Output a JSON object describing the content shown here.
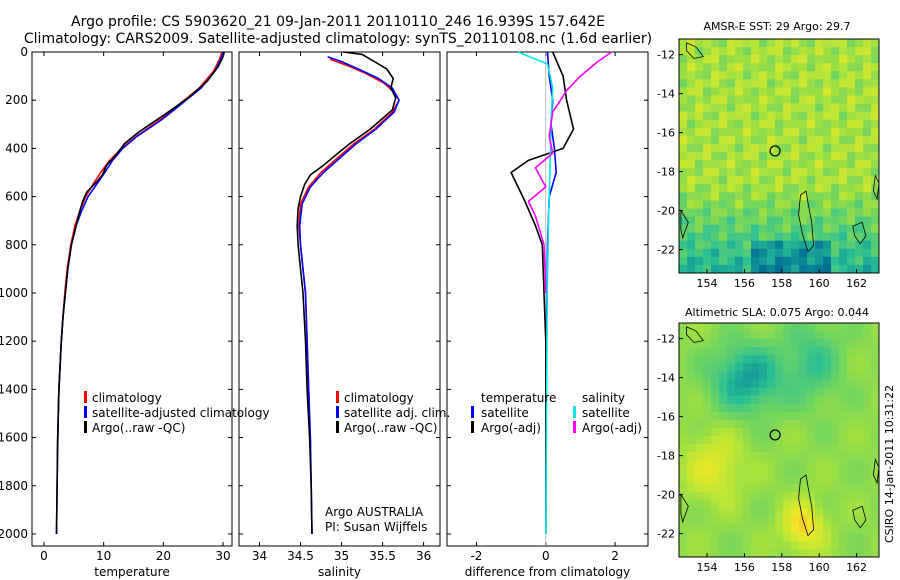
{
  "title": {
    "line1": "Argo profile: CS 5903620_21 09-Jan-2011 20110110_246 16.939S 157.642E",
    "line2": "Climatology: CARS2009. Satellite-adjusted climatology: synTS_20110108.nc (1.6d earlier)"
  },
  "colors": {
    "climatology": "#ff0000",
    "satellite": "#0000ff",
    "argo": "#000000",
    "diff_temp_sat": "#00e5e5",
    "diff_sal_sat": "#0000ff",
    "diff_sal_argo": "#ff00ff"
  },
  "depth_axis": {
    "range": [
      0,
      2050
    ],
    "ticks": [
      0,
      200,
      400,
      600,
      800,
      1000,
      1200,
      1400,
      1600,
      1800,
      2000
    ],
    "tick_labels": [
      "0",
      "200",
      "400",
      "600",
      "800",
      "1000",
      "1200",
      "1400",
      "1600",
      "1800",
      "2000"
    ]
  },
  "chart_data": [
    {
      "id": "temperature",
      "type": "line",
      "xlabel": "temperature",
      "ylabel": "",
      "xlim": [
        -2,
        31.5
      ],
      "ylim": [
        2050,
        0
      ],
      "xticks": [
        0,
        10,
        20,
        30
      ],
      "xtick_labels": [
        "0",
        "10",
        "20",
        "30"
      ],
      "legend": [
        "climatology",
        "satellite-adjusted climatology",
        "Argo(..raw -QC)"
      ],
      "legend_position": "lower-right",
      "series": [
        {
          "name": "climatology",
          "color_key": "climatology",
          "points": [
            [
              29.8,
              0
            ],
            [
              29.4,
              30
            ],
            [
              28.4,
              80
            ],
            [
              26.0,
              150
            ],
            [
              23.5,
              200
            ],
            [
              19.5,
              280
            ],
            [
              15.5,
              350
            ],
            [
              13.0,
              400
            ],
            [
              11.0,
              450
            ],
            [
              9.5,
              500
            ],
            [
              8.2,
              550
            ],
            [
              7.0,
              600
            ],
            [
              6.0,
              660
            ],
            [
              5.2,
              720
            ],
            [
              4.5,
              800
            ],
            [
              3.9,
              900
            ],
            [
              3.5,
              1000
            ],
            [
              3.2,
              1100
            ],
            [
              2.9,
              1200
            ],
            [
              2.7,
              1300
            ],
            [
              2.5,
              1400
            ],
            [
              2.4,
              1500
            ],
            [
              2.3,
              1640
            ]
          ]
        },
        {
          "name": "satellite-adjusted climatology",
          "color_key": "satellite",
          "points": [
            [
              30.0,
              0
            ],
            [
              29.6,
              30
            ],
            [
              28.6,
              80
            ],
            [
              26.3,
              150
            ],
            [
              23.8,
              200
            ],
            [
              19.8,
              280
            ],
            [
              15.6,
              350
            ],
            [
              13.2,
              400
            ],
            [
              11.5,
              450
            ],
            [
              10.2,
              500
            ],
            [
              8.8,
              550
            ],
            [
              7.4,
              600
            ],
            [
              6.3,
              660
            ],
            [
              5.4,
              720
            ],
            [
              4.6,
              800
            ],
            [
              4.0,
              900
            ],
            [
              3.6,
              1000
            ],
            [
              3.2,
              1100
            ],
            [
              2.9,
              1200
            ],
            [
              2.7,
              1300
            ],
            [
              2.5,
              1400
            ],
            [
              2.4,
              1500
            ],
            [
              2.3,
              1600
            ],
            [
              2.25,
              1700
            ],
            [
              2.2,
              1800
            ],
            [
              2.15,
              1900
            ],
            [
              2.1,
              2000
            ]
          ]
        },
        {
          "name": "Argo(..raw -QC)",
          "color_key": "argo",
          "points": [
            [
              30.2,
              0
            ],
            [
              30.0,
              20
            ],
            [
              29.2,
              60
            ],
            [
              27.4,
              120
            ],
            [
              24.2,
              190
            ],
            [
              20.2,
              260
            ],
            [
              16.0,
              330
            ],
            [
              13.5,
              380
            ],
            [
              12.0,
              430
            ],
            [
              10.5,
              470
            ],
            [
              9.8,
              510
            ],
            [
              8.8,
              540
            ],
            [
              7.2,
              580
            ],
            [
              6.5,
              620
            ],
            [
              6.0,
              660
            ],
            [
              5.4,
              720
            ],
            [
              4.6,
              800
            ],
            [
              4.0,
              900
            ],
            [
              3.6,
              1000
            ],
            [
              3.2,
              1100
            ],
            [
              2.9,
              1200
            ],
            [
              2.7,
              1300
            ],
            [
              2.5,
              1400
            ],
            [
              2.4,
              1500
            ],
            [
              2.3,
              1600
            ],
            [
              2.25,
              1700
            ],
            [
              2.2,
              1800
            ],
            [
              2.15,
              1900
            ],
            [
              2.1,
              2000
            ]
          ]
        }
      ]
    },
    {
      "id": "salinity",
      "type": "line",
      "xlabel": "salinity",
      "ylabel": "",
      "xlim": [
        33.75,
        36.2
      ],
      "ylim": [
        2050,
        0
      ],
      "xticks": [
        34,
        34.5,
        35,
        35.5,
        36
      ],
      "xtick_labels": [
        "34",
        "34.5",
        "35",
        "35.5",
        "36"
      ],
      "legend": [
        "climatology",
        "satellite adj. clim.",
        "Argo(..raw -QC)"
      ],
      "legend_position": "lower-right",
      "annotation": [
        "Argo AUSTRALIA",
        "PI: Susan Wijffels"
      ],
      "series": [
        {
          "name": "climatology",
          "color_key": "climatology",
          "points": [
            [
              34.86,
              30
            ],
            [
              35.1,
              60
            ],
            [
              35.3,
              90
            ],
            [
              35.52,
              130
            ],
            [
              35.65,
              170
            ],
            [
              35.7,
              200
            ],
            [
              35.62,
              250
            ],
            [
              35.4,
              320
            ],
            [
              35.15,
              380
            ],
            [
              34.95,
              440
            ],
            [
              34.75,
              500
            ],
            [
              34.6,
              560
            ],
            [
              34.5,
              630
            ],
            [
              34.48,
              720
            ],
            [
              34.5,
              800
            ],
            [
              34.53,
              900
            ],
            [
              34.56,
              1000
            ],
            [
              34.58,
              1200
            ],
            [
              34.6,
              1400
            ],
            [
              34.62,
              1640
            ]
          ]
        },
        {
          "name": "satellite adj. clim.",
          "color_key": "satellite",
          "points": [
            [
              34.83,
              20
            ],
            [
              35.0,
              40
            ],
            [
              35.2,
              70
            ],
            [
              35.45,
              110
            ],
            [
              35.62,
              150
            ],
            [
              35.7,
              200
            ],
            [
              35.64,
              250
            ],
            [
              35.42,
              320
            ],
            [
              35.18,
              380
            ],
            [
              34.98,
              440
            ],
            [
              34.78,
              500
            ],
            [
              34.62,
              560
            ],
            [
              34.52,
              630
            ],
            [
              34.49,
              720
            ],
            [
              34.5,
              800
            ],
            [
              34.53,
              900
            ],
            [
              34.56,
              1000
            ],
            [
              34.58,
              1200
            ],
            [
              34.6,
              1400
            ],
            [
              34.62,
              1600
            ],
            [
              34.63,
              1800
            ],
            [
              34.64,
              2000
            ]
          ]
        },
        {
          "name": "Argo(..raw -QC)",
          "color_key": "argo",
          "points": [
            [
              35.02,
              0
            ],
            [
              35.25,
              10
            ],
            [
              35.35,
              30
            ],
            [
              35.55,
              70
            ],
            [
              35.63,
              110
            ],
            [
              35.6,
              150
            ],
            [
              35.66,
              190
            ],
            [
              35.62,
              240
            ],
            [
              35.35,
              320
            ],
            [
              35.1,
              380
            ],
            [
              34.92,
              430
            ],
            [
              34.78,
              470
            ],
            [
              34.62,
              510
            ],
            [
              34.55,
              550
            ],
            [
              34.5,
              600
            ],
            [
              34.47,
              650
            ],
            [
              34.46,
              720
            ],
            [
              34.47,
              800
            ],
            [
              34.5,
              900
            ],
            [
              34.53,
              1000
            ],
            [
              34.56,
              1200
            ],
            [
              34.58,
              1400
            ],
            [
              34.61,
              1600
            ],
            [
              34.63,
              1800
            ],
            [
              34.64,
              2000
            ]
          ]
        }
      ]
    },
    {
      "id": "difference",
      "type": "line",
      "xlabel": "difference from climatology",
      "ylabel": "",
      "xlim": [
        -2.85,
        2.95
      ],
      "ylim": [
        2050,
        0
      ],
      "xticks": [
        -2,
        0,
        2
      ],
      "xtick_labels": [
        "-2",
        "0",
        "2"
      ],
      "legend_temperature": {
        "heading": "temperature",
        "items": [
          "satellite",
          "Argo(-adj)"
        ]
      },
      "legend_salinity": {
        "heading": "salinity",
        "items": [
          "satellite",
          "Argo(-adj)"
        ]
      },
      "series": [
        {
          "name": "temperature satellite",
          "color_key": "satellite",
          "points": [
            [
              0.05,
              0
            ],
            [
              0.1,
              100
            ],
            [
              0.2,
              200
            ],
            [
              0.15,
              300
            ],
            [
              0.25,
              400
            ],
            [
              0.3,
              500
            ],
            [
              0.1,
              600
            ],
            [
              0.05,
              800
            ],
            [
              0.02,
              1200
            ],
            [
              0.0,
              2000
            ]
          ]
        },
        {
          "name": "temperature Argo(-adj)",
          "color_key": "argo",
          "points": [
            [
              0.2,
              0
            ],
            [
              0.5,
              100
            ],
            [
              0.6,
              200
            ],
            [
              0.8,
              320
            ],
            [
              0.5,
              400
            ],
            [
              -0.5,
              450
            ],
            [
              -1.0,
              500
            ],
            [
              -0.8,
              560
            ],
            [
              -0.6,
              620
            ],
            [
              -0.3,
              720
            ],
            [
              -0.1,
              800
            ],
            [
              -0.05,
              1000
            ],
            [
              0.0,
              1200
            ],
            [
              0.0,
              2000
            ]
          ]
        },
        {
          "name": "salinity satellite",
          "color_key": "diff_temp_sat",
          "points": [
            [
              -0.8,
              0
            ],
            [
              0.05,
              50
            ],
            [
              0.2,
              150
            ],
            [
              0.15,
              300
            ],
            [
              0.12,
              500
            ],
            [
              0.08,
              700
            ],
            [
              0.04,
              1000
            ],
            [
              0.02,
              1500
            ],
            [
              0.0,
              2000
            ]
          ]
        },
        {
          "name": "salinity Argo(-adj)",
          "color_key": "diff_sal_argo",
          "points": [
            [
              1.9,
              0
            ],
            [
              1.5,
              40
            ],
            [
              1.0,
              100
            ],
            [
              0.6,
              160
            ],
            [
              0.2,
              250
            ],
            [
              0.1,
              350
            ],
            [
              0.2,
              420
            ],
            [
              -0.3,
              480
            ],
            [
              0.0,
              560
            ],
            [
              -0.5,
              620
            ],
            [
              -0.3,
              680
            ],
            [
              -0.05,
              800
            ],
            [
              0.0,
              1000
            ]
          ]
        }
      ]
    },
    {
      "id": "sst-map",
      "type": "heatmap",
      "title": "AMSR-E SST: 29 Argo: 29.7",
      "xlim": [
        152.5,
        163.2
      ],
      "ylim": [
        -23.2,
        -11.2
      ],
      "xticks": [
        154,
        156,
        158,
        160,
        162
      ],
      "xtick_labels": [
        "154",
        "156",
        "158",
        "160",
        "162"
      ],
      "yticks": [
        -12,
        -14,
        -16,
        -18,
        -20,
        -22
      ],
      "ytick_labels": [
        "-12",
        "-14",
        "-16",
        "-18",
        "-20",
        "-22"
      ],
      "marker": {
        "lon": 157.64,
        "lat": -16.94
      }
    },
    {
      "id": "sla-map",
      "type": "heatmap",
      "title": "Altimetric SLA: 0.075 Argo: 0.044",
      "xlim": [
        152.5,
        163.2
      ],
      "ylim": [
        -23.2,
        -11.2
      ],
      "xticks": [
        154,
        156,
        158,
        160,
        162
      ],
      "xtick_labels": [
        "154",
        "156",
        "158",
        "160",
        "162"
      ],
      "yticks": [
        -12,
        -14,
        -16,
        -18,
        -20,
        -22
      ],
      "ytick_labels": [
        "-12",
        "-14",
        "-16",
        "-18",
        "-20",
        "-22"
      ],
      "marker": {
        "lon": 157.64,
        "lat": -16.94
      }
    }
  ],
  "credit": "CSIRO 14-Jan-2011 10:31:22"
}
